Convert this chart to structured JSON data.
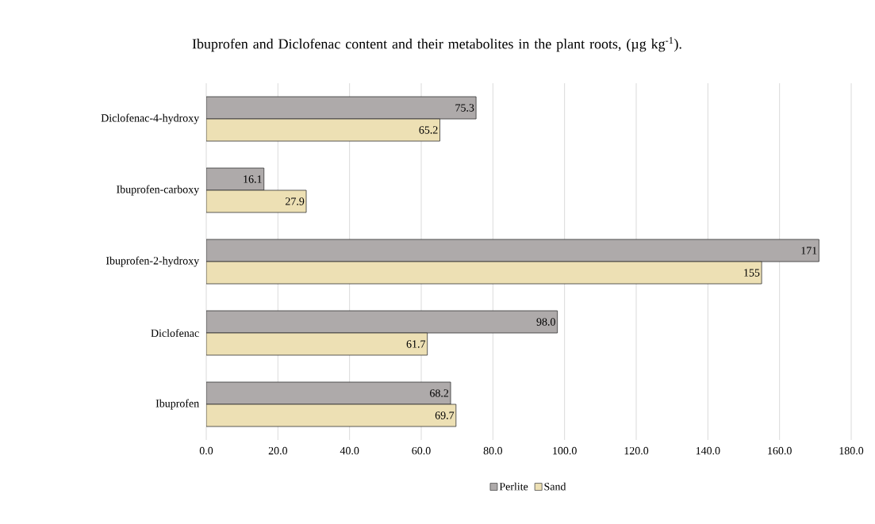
{
  "chart_data": {
    "type": "bar",
    "orientation": "horizontal",
    "title": "Ibuprofen and Diclofenac content and their metabolites in the plant roots, (µg kg$^{-1}$).",
    "categories": [
      "Diclofenac-4-hydroxy",
      "Ibuprofen-carboxy",
      "Ibuprofen-2-hydroxy",
      "Diclofenac",
      "Ibuprofen"
    ],
    "series": [
      {
        "name": "Perlite",
        "color": "#aeaaaa",
        "values": [
          75.3,
          16.1,
          171,
          98.0,
          68.2
        ],
        "value_labels": [
          "75.3",
          "16.1",
          "171",
          "98.0",
          "68.2"
        ]
      },
      {
        "name": "Sand",
        "color": "#ede0b4",
        "values": [
          65.2,
          27.9,
          155,
          61.7,
          69.7
        ],
        "value_labels": [
          "65.2",
          "27.9",
          "155",
          "61.7",
          "69.7"
        ]
      }
    ],
    "xlim": [
      0,
      180
    ],
    "xticks": [
      {
        "value": 0,
        "label": "0.0"
      },
      {
        "value": 20,
        "label": "20.0"
      },
      {
        "value": 40,
        "label": "40.0"
      },
      {
        "value": 60,
        "label": "60.0"
      },
      {
        "value": 80,
        "label": "80.0"
      },
      {
        "value": 100,
        "label": "100.0"
      },
      {
        "value": 120,
        "label": "120.0"
      },
      {
        "value": 140,
        "label": "140.0"
      },
      {
        "value": 160,
        "label": "160.0"
      },
      {
        "value": 180,
        "label": "180.0"
      }
    ],
    "grid": "x",
    "legend": "bottom"
  }
}
